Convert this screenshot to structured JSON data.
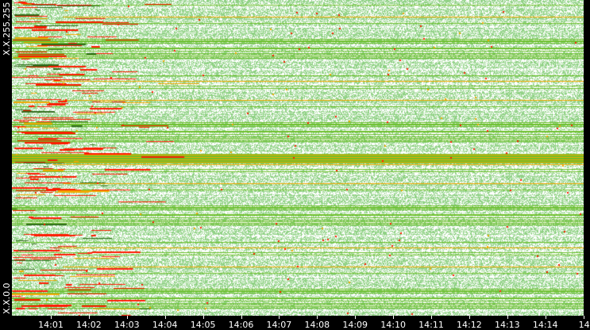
{
  "chart_data": {
    "type": "heatmap",
    "title": "",
    "xlabel": "",
    "ylabel": "",
    "x_tick_labels": [
      "14:01",
      "14:02",
      "14:03",
      "14:04",
      "14:05",
      "14:06",
      "14:07",
      "14:08",
      "14:09",
      "14:10",
      "14:11",
      "14:12",
      "14:13",
      "14:14",
      "14"
    ],
    "y_tick_labels": [
      "X.X.255.255",
      "X.X.0.0"
    ],
    "grid": false,
    "legend": "none",
    "colors": {
      "background": "#ffffff",
      "low_activity": "#8fd184",
      "medium_activity": "#6cbf2a",
      "elevated_activity": "#f2a800",
      "high_activity": "#ff1a00",
      "dark_activity": "#2f6b1a",
      "axis_background": "#000000",
      "axis_text": "#ffffff"
    }
  }
}
